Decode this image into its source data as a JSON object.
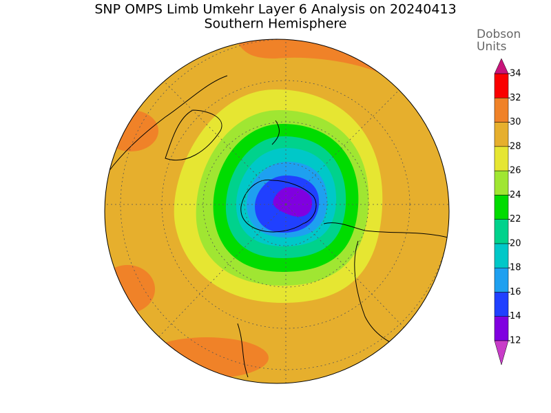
{
  "title": "SNP OMPS Limb Umkehr Layer 6 Analysis on 20240413",
  "subtitle": "Southern Hemisphere",
  "colorbar": {
    "label": [
      "Dobson",
      "Units"
    ],
    "ticks": [
      12,
      14,
      16,
      18,
      20,
      22,
      24,
      26,
      28,
      30,
      32,
      34
    ],
    "colors": [
      "#8000e0",
      "#2040ff",
      "#1ea0f0",
      "#00c8c8",
      "#00d28c",
      "#00dc00",
      "#a0e632",
      "#e6e632",
      "#e6af2d",
      "#f08228",
      "#fa0000"
    ],
    "under_color": "#c83cc8",
    "over_color": "#c8147a"
  }
}
